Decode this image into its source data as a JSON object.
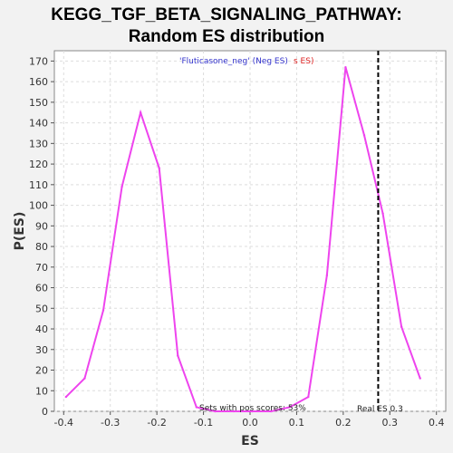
{
  "chart_data": {
    "type": "line",
    "title_line1": "KEGG_TGF_BETA_SIGNALING_PATHWAY:",
    "title_line2": "Random ES distribution",
    "xlabel": "ES",
    "ylabel": "P(ES)",
    "xlim": [
      -0.42,
      0.42
    ],
    "ylim": [
      0,
      175
    ],
    "xticks": [
      -0.4,
      -0.3,
      -0.2,
      -0.1,
      0.0,
      0.1,
      0.2,
      0.3,
      0.4
    ],
    "xtick_labels": [
      "-0.4",
      "-0.3",
      "-0.2",
      "-0.1",
      "0.0",
      "0.1",
      "0.2",
      "0.3",
      "0.4"
    ],
    "yticks": [
      0,
      10,
      20,
      30,
      40,
      50,
      60,
      70,
      80,
      90,
      100,
      110,
      120,
      130,
      140,
      150,
      160,
      170
    ],
    "grid": true,
    "legend": {
      "neg_label": "'Fluticasone_neg' (Neg ES)",
      "pos_label": "s ES)",
      "neg_color": "#3333cc",
      "pos_color": "#dd2222",
      "placement": "top-center"
    },
    "series": [
      {
        "color": "#ee44ee",
        "x": [
          -0.395,
          -0.355,
          -0.315,
          -0.275,
          -0.235,
          -0.195,
          -0.155,
          -0.115,
          -0.075,
          -0.035,
          0.005,
          0.045,
          0.085,
          0.125,
          0.165,
          0.205,
          0.245,
          0.285,
          0.325,
          0.365
        ],
        "y": [
          7,
          16,
          49,
          109,
          145,
          118,
          27,
          2,
          0,
          0,
          0,
          0,
          2,
          7,
          66,
          167,
          134,
          96,
          41,
          16
        ]
      }
    ],
    "real_es": 0.275,
    "real_es_label": "Real ES 0.3",
    "annotation": "Sets with pos scores: 53%"
  }
}
